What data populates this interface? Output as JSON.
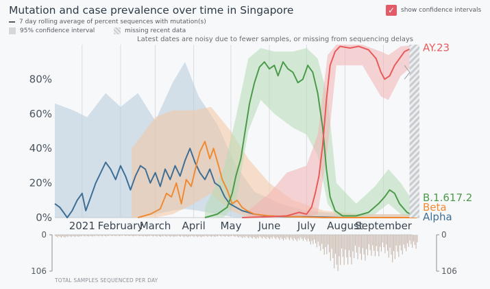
{
  "title": "Mutation and case prevalence over time in Singapore",
  "legend": {
    "rolling_label": "7 day rolling average of percent sequences with mutation(s)",
    "ci_label": "95% confidence interval",
    "missing_label": "missing recent data"
  },
  "toggle": {
    "label": "show confidence intervals",
    "checked": true,
    "check_glyph": "✓"
  },
  "note": "Latest dates are noisy due to fewer samples, or missing from sequencing delays",
  "bars": {
    "caption": "TOTAL SAMPLES SEQUENCED PER DAY",
    "top_label": "0",
    "bottom_label": "106"
  },
  "colors": {
    "alpha": "#3e6e94",
    "beta": "#ef8a33",
    "delta": "#4a9a4a",
    "ay23": "#e85a5a",
    "alpha_ci": "#b5c8d8",
    "beta_ci": "#f4c7a2",
    "delta_ci": "#b7dbb5",
    "ay23_ci": "#f3b2b2",
    "bars": "#c6b6aa",
    "background": "#f7f8fa"
  },
  "chart_data": {
    "type": "line",
    "title": "Mutation and case prevalence over time in Singapore",
    "xlabel": "",
    "ylabel": "",
    "x_domain": [
      "2020-12-10",
      "2021-09-30"
    ],
    "ylim": [
      0,
      100
    ],
    "y_ticks": [
      "0%",
      "20%",
      "40%",
      "60%",
      "80%"
    ],
    "y_tick_values": [
      0,
      20,
      40,
      60,
      80
    ],
    "x_ticks": [
      "2021",
      "February",
      "March",
      "April",
      "May",
      "June",
      "July",
      "August",
      "September"
    ],
    "x_tick_dates": [
      "2021-01-01",
      "2021-02-01",
      "2021-03-01",
      "2021-04-01",
      "2021-05-01",
      "2021-06-01",
      "2021-07-01",
      "2021-08-01",
      "2021-09-01"
    ],
    "series": [
      {
        "name": "Alpha",
        "key": "alpha",
        "points": [
          [
            "2020-12-10",
            8
          ],
          [
            "2020-12-14",
            6
          ],
          [
            "2020-12-17",
            3
          ],
          [
            "2020-12-20",
            0
          ],
          [
            "2020-12-24",
            4
          ],
          [
            "2020-12-28",
            10
          ],
          [
            "2021-01-01",
            14
          ],
          [
            "2021-01-04",
            4
          ],
          [
            "2021-01-08",
            12
          ],
          [
            "2021-01-12",
            20
          ],
          [
            "2021-01-16",
            26
          ],
          [
            "2021-01-20",
            32
          ],
          [
            "2021-01-24",
            28
          ],
          [
            "2021-01-28",
            22
          ],
          [
            "2021-02-01",
            30
          ],
          [
            "2021-02-05",
            24
          ],
          [
            "2021-02-09",
            16
          ],
          [
            "2021-02-13",
            24
          ],
          [
            "2021-02-17",
            30
          ],
          [
            "2021-02-21",
            28
          ],
          [
            "2021-02-25",
            20
          ],
          [
            "2021-03-01",
            26
          ],
          [
            "2021-03-05",
            18
          ],
          [
            "2021-03-09",
            28
          ],
          [
            "2021-03-13",
            22
          ],
          [
            "2021-03-17",
            30
          ],
          [
            "2021-03-21",
            24
          ],
          [
            "2021-03-25",
            33
          ],
          [
            "2021-03-29",
            40
          ],
          [
            "2021-04-02",
            32
          ],
          [
            "2021-04-06",
            26
          ],
          [
            "2021-04-10",
            22
          ],
          [
            "2021-04-14",
            28
          ],
          [
            "2021-04-18",
            20
          ],
          [
            "2021-04-22",
            18
          ],
          [
            "2021-04-26",
            12
          ],
          [
            "2021-04-30",
            8
          ],
          [
            "2021-05-05",
            6
          ],
          [
            "2021-05-10",
            4
          ],
          [
            "2021-05-15",
            3
          ],
          [
            "2021-05-20",
            2
          ],
          [
            "2021-05-30",
            1
          ],
          [
            "2021-06-15",
            0.5
          ],
          [
            "2021-07-01",
            0.5
          ],
          [
            "2021-08-01",
            0
          ],
          [
            "2021-09-28",
            0
          ]
        ],
        "ci": [
          [
            "2020-12-10",
            0,
            66
          ],
          [
            "2020-12-25",
            0,
            62
          ],
          [
            "2021-01-05",
            0,
            58
          ],
          [
            "2021-01-20",
            0,
            72
          ],
          [
            "2021-02-01",
            0,
            64
          ],
          [
            "2021-02-15",
            0,
            72
          ],
          [
            "2021-03-01",
            2,
            56
          ],
          [
            "2021-03-15",
            4,
            78
          ],
          [
            "2021-03-25",
            5,
            90
          ],
          [
            "2021-04-05",
            4,
            70
          ],
          [
            "2021-04-20",
            2,
            54
          ],
          [
            "2021-05-05",
            0,
            30
          ],
          [
            "2021-05-20",
            0,
            15
          ],
          [
            "2021-06-10",
            0,
            8
          ],
          [
            "2021-07-01",
            0,
            4
          ],
          [
            "2021-08-01",
            0,
            2
          ],
          [
            "2021-09-28",
            0,
            2
          ]
        ]
      },
      {
        "name": "Beta",
        "key": "beta",
        "points": [
          [
            "2021-02-15",
            0
          ],
          [
            "2021-02-25",
            2
          ],
          [
            "2021-03-05",
            5
          ],
          [
            "2021-03-10",
            14
          ],
          [
            "2021-03-14",
            12
          ],
          [
            "2021-03-18",
            20
          ],
          [
            "2021-03-22",
            8
          ],
          [
            "2021-03-26",
            22
          ],
          [
            "2021-03-30",
            18
          ],
          [
            "2021-04-03",
            30
          ],
          [
            "2021-04-06",
            38
          ],
          [
            "2021-04-10",
            44
          ],
          [
            "2021-04-14",
            34
          ],
          [
            "2021-04-17",
            40
          ],
          [
            "2021-04-21",
            30
          ],
          [
            "2021-04-24",
            22
          ],
          [
            "2021-04-28",
            16
          ],
          [
            "2021-05-02",
            8
          ],
          [
            "2021-05-06",
            10
          ],
          [
            "2021-05-10",
            6
          ],
          [
            "2021-05-14",
            4
          ],
          [
            "2021-05-20",
            2
          ],
          [
            "2021-06-01",
            1
          ],
          [
            "2021-06-20",
            0.5
          ],
          [
            "2021-07-15",
            0
          ],
          [
            "2021-09-28",
            0
          ]
        ],
        "ci": [
          [
            "2021-02-10",
            0,
            40
          ],
          [
            "2021-03-01",
            0,
            58
          ],
          [
            "2021-03-15",
            2,
            62
          ],
          [
            "2021-04-01",
            8,
            62
          ],
          [
            "2021-04-15",
            14,
            64
          ],
          [
            "2021-05-01",
            4,
            50
          ],
          [
            "2021-05-15",
            0,
            34
          ],
          [
            "2021-06-01",
            0,
            20
          ],
          [
            "2021-06-20",
            0,
            10
          ],
          [
            "2021-07-15",
            0,
            4
          ],
          [
            "2021-08-15",
            0,
            2
          ],
          [
            "2021-09-28",
            0,
            2
          ]
        ]
      },
      {
        "name": "B.1.617.2",
        "key": "delta",
        "points": [
          [
            "2021-04-10",
            0
          ],
          [
            "2021-04-20",
            2
          ],
          [
            "2021-04-28",
            6
          ],
          [
            "2021-05-02",
            14
          ],
          [
            "2021-05-05",
            24
          ],
          [
            "2021-05-09",
            34
          ],
          [
            "2021-05-12",
            48
          ],
          [
            "2021-05-16",
            66
          ],
          [
            "2021-05-20",
            78
          ],
          [
            "2021-05-24",
            87
          ],
          [
            "2021-05-28",
            90
          ],
          [
            "2021-06-01",
            86
          ],
          [
            "2021-06-05",
            88
          ],
          [
            "2021-06-08",
            82
          ],
          [
            "2021-06-12",
            90
          ],
          [
            "2021-06-16",
            86
          ],
          [
            "2021-06-20",
            84
          ],
          [
            "2021-06-24",
            78
          ],
          [
            "2021-06-28",
            80
          ],
          [
            "2021-07-02",
            88
          ],
          [
            "2021-07-06",
            84
          ],
          [
            "2021-07-10",
            72
          ],
          [
            "2021-07-14",
            52
          ],
          [
            "2021-07-17",
            28
          ],
          [
            "2021-07-20",
            12
          ],
          [
            "2021-07-24",
            4
          ],
          [
            "2021-07-30",
            1
          ],
          [
            "2021-08-10",
            1
          ],
          [
            "2021-08-20",
            3
          ],
          [
            "2021-08-28",
            8
          ],
          [
            "2021-09-02",
            12
          ],
          [
            "2021-09-06",
            16
          ],
          [
            "2021-09-10",
            14
          ],
          [
            "2021-09-14",
            8
          ],
          [
            "2021-09-20",
            3
          ],
          [
            "2021-09-26",
            1
          ]
        ],
        "ci": [
          [
            "2021-04-10",
            0,
            6
          ],
          [
            "2021-04-25",
            0,
            28
          ],
          [
            "2021-05-05",
            8,
            58
          ],
          [
            "2021-05-15",
            50,
            92
          ],
          [
            "2021-05-25",
            68,
            98
          ],
          [
            "2021-06-05",
            60,
            96
          ],
          [
            "2021-06-20",
            52,
            96
          ],
          [
            "2021-07-01",
            48,
            98
          ],
          [
            "2021-07-10",
            36,
            92
          ],
          [
            "2021-07-18",
            8,
            70
          ],
          [
            "2021-07-25",
            1,
            20
          ],
          [
            "2021-08-10",
            0,
            8
          ],
          [
            "2021-08-25",
            2,
            18
          ],
          [
            "2021-09-05",
            8,
            28
          ],
          [
            "2021-09-15",
            2,
            20
          ],
          [
            "2021-09-28",
            0,
            6
          ]
        ]
      },
      {
        "name": "AY.23",
        "key": "ay23",
        "points": [
          [
            "2021-05-10",
            0
          ],
          [
            "2021-06-01",
            0.5
          ],
          [
            "2021-06-15",
            1
          ],
          [
            "2021-06-25",
            3
          ],
          [
            "2021-07-01",
            2
          ],
          [
            "2021-07-05",
            6
          ],
          [
            "2021-07-08",
            14
          ],
          [
            "2021-07-11",
            24
          ],
          [
            "2021-07-14",
            42
          ],
          [
            "2021-07-17",
            68
          ],
          [
            "2021-07-20",
            88
          ],
          [
            "2021-07-24",
            96
          ],
          [
            "2021-07-28",
            99
          ],
          [
            "2021-08-05",
            98
          ],
          [
            "2021-08-12",
            99
          ],
          [
            "2021-08-20",
            97
          ],
          [
            "2021-08-26",
            92
          ],
          [
            "2021-08-30",
            84
          ],
          [
            "2021-09-02",
            80
          ],
          [
            "2021-09-06",
            82
          ],
          [
            "2021-09-10",
            88
          ],
          [
            "2021-09-14",
            92
          ],
          [
            "2021-09-18",
            96
          ],
          [
            "2021-09-24",
            98
          ],
          [
            "2021-09-28",
            99
          ]
        ],
        "ci": [
          [
            "2021-05-15",
            0,
            4
          ],
          [
            "2021-06-01",
            0,
            14
          ],
          [
            "2021-06-15",
            0,
            26
          ],
          [
            "2021-07-01",
            0,
            30
          ],
          [
            "2021-07-10",
            2,
            48
          ],
          [
            "2021-07-18",
            40,
            94
          ],
          [
            "2021-07-25",
            88,
            100
          ],
          [
            "2021-08-15",
            88,
            100
          ],
          [
            "2021-08-30",
            70,
            96
          ],
          [
            "2021-09-05",
            68,
            94
          ],
          [
            "2021-09-15",
            82,
            99
          ],
          [
            "2021-09-28",
            90,
            100
          ]
        ]
      }
    ],
    "missing_from": "2021-09-22",
    "samples_per_day": {
      "axis_max": 106,
      "approx_daily_counts": [
        [
          "2020-12-15",
          6
        ],
        [
          "2021-01-01",
          4
        ],
        [
          "2021-02-01",
          3
        ],
        [
          "2021-03-01",
          4
        ],
        [
          "2021-04-01",
          5
        ],
        [
          "2021-05-01",
          4
        ],
        [
          "2021-05-15",
          8
        ],
        [
          "2021-06-01",
          9
        ],
        [
          "2021-06-15",
          12
        ],
        [
          "2021-07-01",
          14
        ],
        [
          "2021-07-15",
          40
        ],
        [
          "2021-07-25",
          80
        ],
        [
          "2021-08-05",
          60
        ],
        [
          "2021-08-20",
          50
        ],
        [
          "2021-09-01",
          40
        ],
        [
          "2021-09-10",
          60
        ],
        [
          "2021-09-20",
          30
        ]
      ]
    }
  }
}
